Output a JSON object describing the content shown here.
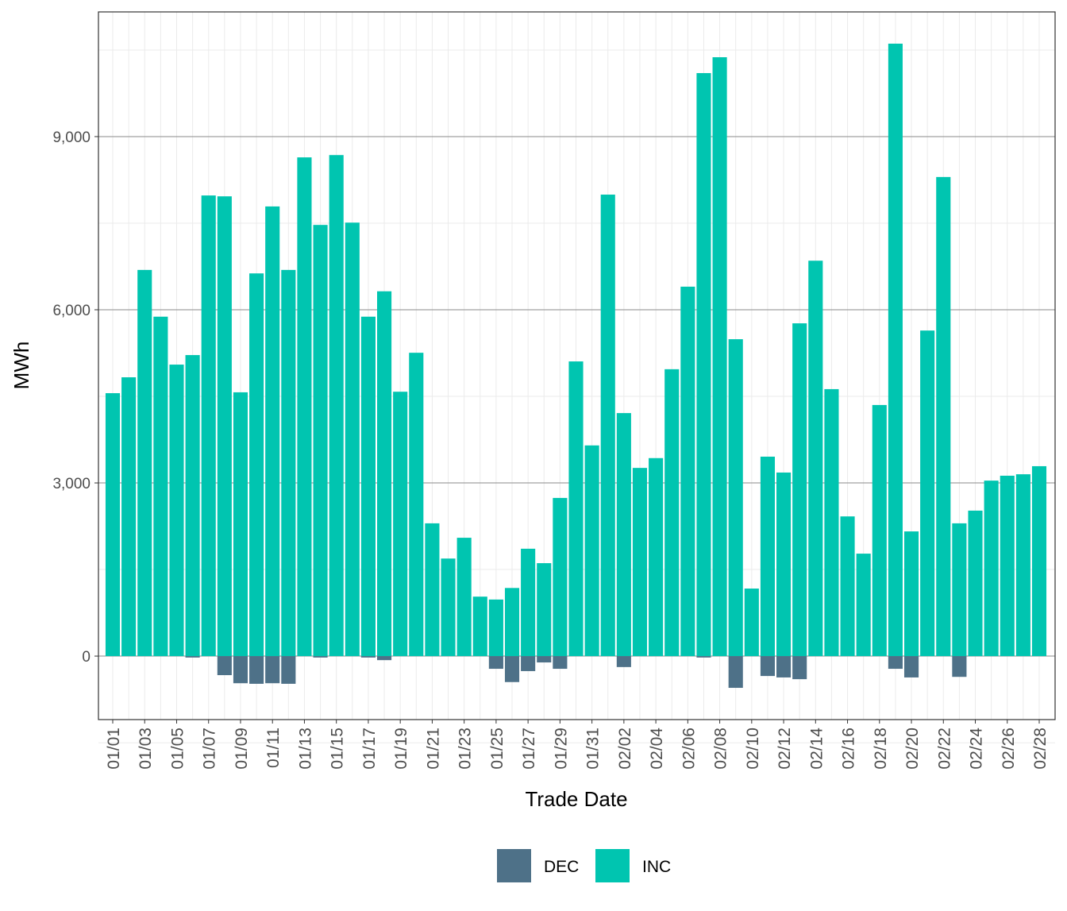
{
  "chart_data": {
    "type": "bar",
    "stacked": true,
    "xlabel": "Trade Date",
    "ylabel": "MWh",
    "ylim": [
      -1100,
      11160
    ],
    "yticks": [
      0,
      3000,
      6000,
      9000
    ],
    "ytick_labels": [
      "0",
      "3,000",
      "6,000",
      "9,000"
    ],
    "grid": true,
    "legend_position": "bottom",
    "categories": [
      "01/01",
      "01/02",
      "01/03",
      "01/04",
      "01/05",
      "01/06",
      "01/07",
      "01/08",
      "01/09",
      "01/10",
      "01/11",
      "01/12",
      "01/13",
      "01/14",
      "01/15",
      "01/16",
      "01/17",
      "01/18",
      "01/19",
      "01/20",
      "01/21",
      "01/22",
      "01/23",
      "01/24",
      "01/25",
      "01/26",
      "01/27",
      "01/28",
      "01/29",
      "01/30",
      "01/31",
      "02/01",
      "02/02",
      "02/03",
      "02/04",
      "02/05",
      "02/06",
      "02/07",
      "02/08",
      "02/09",
      "02/10",
      "02/11",
      "02/12",
      "02/13",
      "02/14",
      "02/15",
      "02/16",
      "02/17",
      "02/18",
      "02/19",
      "02/20",
      "02/21",
      "02/22",
      "02/23",
      "02/24",
      "02/25",
      "02/26",
      "02/27",
      "02/28"
    ],
    "xtick_labels": [
      "01/01",
      "01/03",
      "01/05",
      "01/07",
      "01/09",
      "01/11",
      "01/13",
      "01/15",
      "01/17",
      "01/19",
      "01/21",
      "01/23",
      "01/25",
      "01/27",
      "01/29",
      "01/31",
      "02/02",
      "02/04",
      "02/06",
      "02/08",
      "02/10",
      "02/12",
      "02/14",
      "02/16",
      "02/18",
      "02/20",
      "02/22",
      "02/24",
      "02/26",
      "02/28"
    ],
    "series": [
      {
        "name": "DEC",
        "color": "#4e7188",
        "values": [
          0,
          0,
          0,
          0,
          0,
          -25,
          0,
          -330,
          -470,
          -480,
          -470,
          -480,
          0,
          -25,
          0,
          0,
          -25,
          -70,
          0,
          0,
          0,
          0,
          0,
          0,
          -220,
          -450,
          -260,
          -110,
          -220,
          0,
          0,
          0,
          -190,
          0,
          0,
          0,
          0,
          -25,
          0,
          -550,
          0,
          -345,
          -370,
          -400,
          0,
          0,
          0,
          0,
          0,
          -220,
          -370,
          0,
          0,
          -360,
          0,
          0,
          0,
          0,
          0
        ]
      },
      {
        "name": "INC",
        "color": "#00c5b0",
        "values": [
          4555,
          4830,
          6690,
          5880,
          5050,
          5215,
          7980,
          7965,
          4570,
          6630,
          7790,
          6690,
          8640,
          7470,
          8680,
          7510,
          5880,
          6320,
          4580,
          5255,
          2300,
          1690,
          2050,
          1030,
          980,
          1180,
          1860,
          1610,
          2740,
          5105,
          3650,
          7995,
          4210,
          3260,
          3430,
          4970,
          6400,
          10100,
          10375,
          5490,
          1170,
          3455,
          3180,
          5765,
          6850,
          4625,
          2420,
          1775,
          4350,
          10610,
          2160,
          5640,
          8300,
          2300,
          2520,
          3040,
          3125,
          3150,
          3290
        ]
      }
    ]
  }
}
